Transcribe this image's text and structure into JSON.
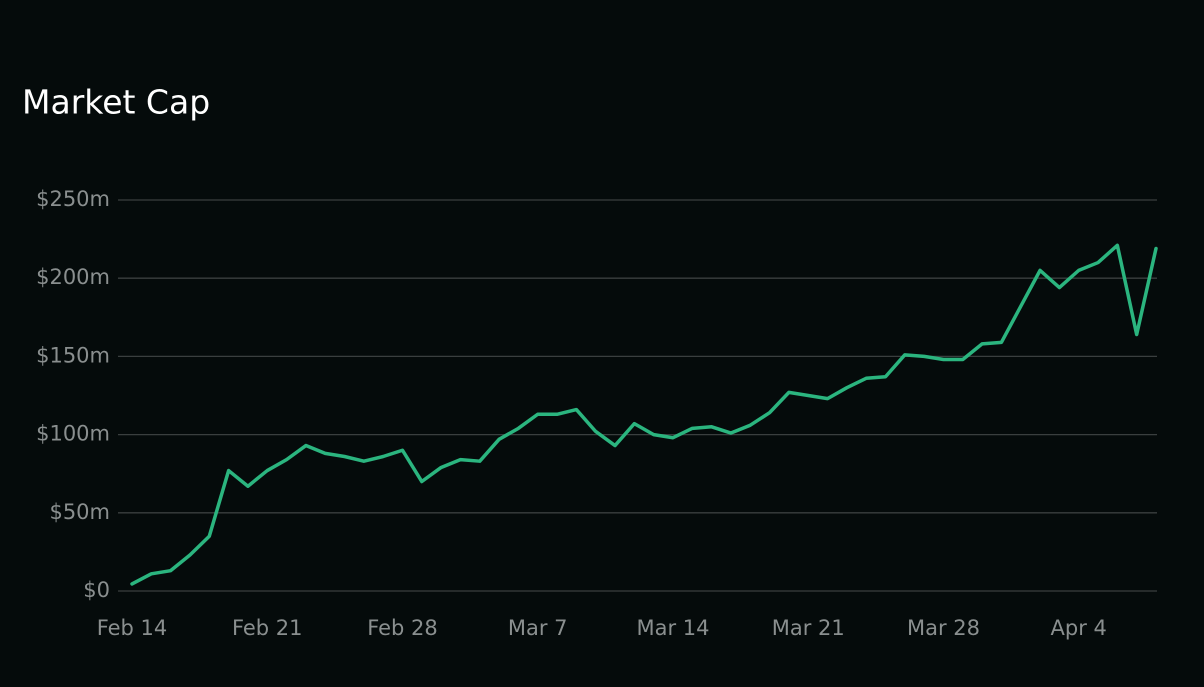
{
  "chart_data": {
    "type": "line",
    "title": "Market Cap",
    "categories": [
      "Feb 14",
      null,
      null,
      null,
      null,
      null,
      null,
      "Feb 21",
      null,
      null,
      null,
      null,
      null,
      null,
      "Feb 28",
      null,
      null,
      null,
      null,
      null,
      null,
      "Mar 7",
      null,
      null,
      null,
      null,
      null,
      null,
      "Mar 14",
      null,
      null,
      null,
      null,
      null,
      null,
      "Mar 21",
      null,
      null,
      null,
      null,
      null,
      null,
      "Mar 28",
      null,
      null,
      null,
      null,
      null,
      null,
      "Apr 4",
      null,
      null,
      null,
      null
    ],
    "series": [
      {
        "name": "Market Cap",
        "color": "#2bb57f",
        "values": [
          4.5,
          11,
          13,
          23,
          35,
          77,
          67,
          77,
          84,
          93,
          88,
          86,
          83,
          86,
          90,
          70,
          79,
          84,
          83,
          97,
          104,
          113,
          113,
          116,
          102,
          93,
          107,
          100,
          98,
          104,
          105,
          101,
          106,
          114,
          127,
          125,
          123,
          130,
          136,
          137,
          151,
          150,
          148,
          148,
          158,
          159,
          182,
          205,
          194,
          205,
          210,
          221,
          164,
          219
        ]
      }
    ],
    "ylim": [
      0,
      250
    ],
    "yticks": [
      {
        "value": 0,
        "label": "$0"
      },
      {
        "value": 50,
        "label": "$50m"
      },
      {
        "value": 100,
        "label": "$100m"
      },
      {
        "value": 150,
        "label": "$150m"
      },
      {
        "value": 200,
        "label": "$200m"
      },
      {
        "value": 250,
        "label": "$250m"
      }
    ],
    "grid": true
  }
}
